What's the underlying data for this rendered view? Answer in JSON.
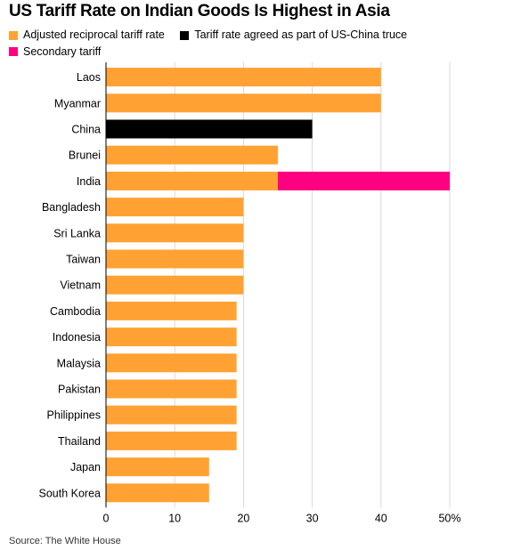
{
  "chart_data": {
    "type": "bar",
    "orientation": "horizontal",
    "stacked": true,
    "title": "US Tariff Rate on Indian Goods Is Highest in Asia",
    "categories": [
      "Laos",
      "Myanmar",
      "China",
      "Brunei",
      "India",
      "Bangladesh",
      "Sri Lanka",
      "Taiwan",
      "Vietnam",
      "Cambodia",
      "Indonesia",
      "Malaysia",
      "Pakistan",
      "Philippines",
      "Thailand",
      "Japan",
      "South Korea"
    ],
    "series": [
      {
        "name": "Adjusted reciprocal tariff rate",
        "color": "#FFA233",
        "values": [
          40,
          40,
          0,
          25,
          25,
          20,
          20,
          20,
          20,
          19,
          19,
          19,
          19,
          19,
          19,
          15,
          15
        ]
      },
      {
        "name": "Tariff rate agreed as part of US-China truce",
        "color": "#000000",
        "values": [
          0,
          0,
          30,
          0,
          0,
          0,
          0,
          0,
          0,
          0,
          0,
          0,
          0,
          0,
          0,
          0,
          0
        ]
      },
      {
        "name": "Secondary tariff",
        "color": "#FF0080",
        "values": [
          0,
          0,
          0,
          0,
          25,
          0,
          0,
          0,
          0,
          0,
          0,
          0,
          0,
          0,
          0,
          0,
          0
        ]
      }
    ],
    "xlim": [
      0,
      50
    ],
    "xticks": [
      "0",
      "10",
      "20",
      "30",
      "40",
      "50%"
    ],
    "xtick_values": [
      0,
      10,
      20,
      30,
      40,
      50
    ],
    "grid": true,
    "legend_position": "top-left",
    "source": "Source: The White House"
  }
}
